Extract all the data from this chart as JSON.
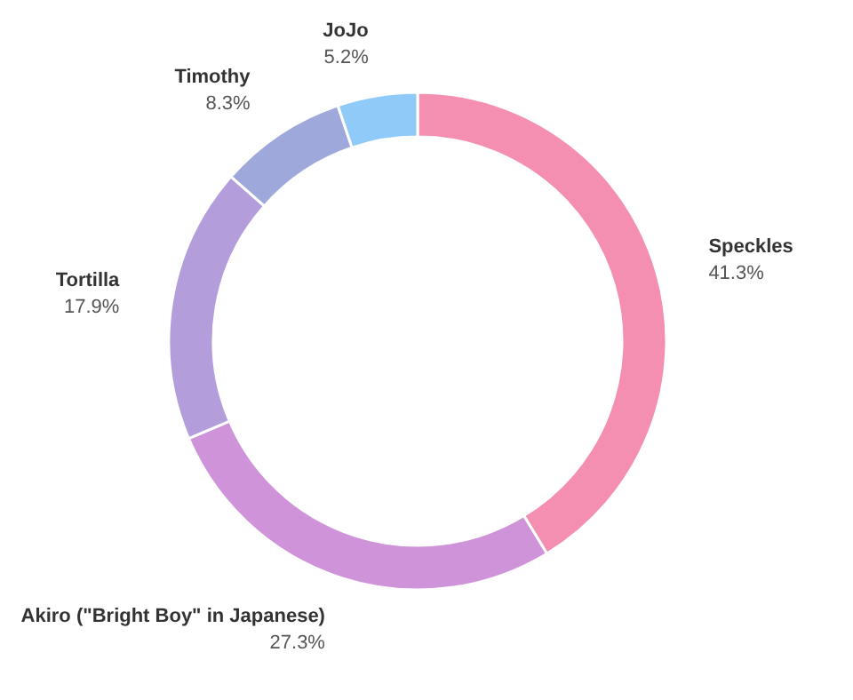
{
  "chart_data": {
    "type": "donut",
    "categories": [
      "Speckles",
      "Akiro (\"Bright Boy\" in Japanese)",
      "Tortilla",
      "Timothy",
      "JoJo"
    ],
    "values": [
      41.3,
      27.3,
      17.9,
      8.3,
      5.2
    ],
    "value_labels": [
      "41.3%",
      "27.3%",
      "17.9%",
      "8.3%",
      "5.2%"
    ],
    "colors": [
      "#f48fb1",
      "#ce93d8",
      "#b39ddb",
      "#9fa8da",
      "#90caf9"
    ],
    "legend": false
  }
}
